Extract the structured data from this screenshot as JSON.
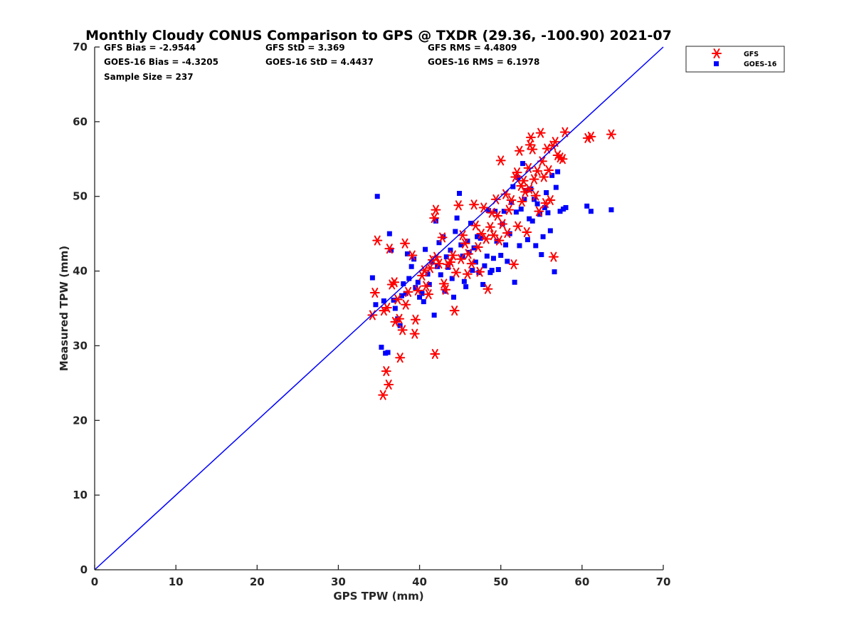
{
  "chart_data": {
    "type": "scatter",
    "title": "Monthly Cloudy CONUS Comparison to GPS @ TXDR (29.36, -100.90) 2021-07",
    "xlabel": "GPS TPW (mm)",
    "ylabel": "Measured TPW (mm)",
    "xlim": [
      0,
      70
    ],
    "ylim": [
      0,
      70
    ],
    "xticks": [
      "0",
      "10",
      "20",
      "30",
      "40",
      "50",
      "60",
      "70"
    ],
    "yticks": [
      "0",
      "10",
      "20",
      "30",
      "40",
      "50",
      "60",
      "70"
    ],
    "grid": false,
    "legend_position": "top-right",
    "reference_line": {
      "x": [
        0,
        70
      ],
      "y": [
        0,
        70
      ],
      "color": "#0000ff"
    },
    "stats": {
      "gfs_bias": "GFS Bias = -2.9544",
      "goes_bias": "GOES-16 Bias = -4.3205",
      "sample_size": "Sample Size = 237",
      "gfs_std": "GFS StD = 3.369",
      "goes_std": "GOES-16 StD = 4.4437",
      "gfs_rms": "GFS RMS = 4.4809",
      "goes_rms": "GOES-16 RMS = 6.1978"
    },
    "series": [
      {
        "name": "GFS",
        "marker": "asterisk",
        "color": "#ff0000",
        "points": [
          [
            34.2,
            34.1
          ],
          [
            34.5,
            37.1
          ],
          [
            34.8,
            44.1
          ],
          [
            35.5,
            23.4
          ],
          [
            35.6,
            34.7
          ],
          [
            35.9,
            26.6
          ],
          [
            36.0,
            35.1
          ],
          [
            36.2,
            24.8
          ],
          [
            36.3,
            43.0
          ],
          [
            36.6,
            38.2
          ],
          [
            36.9,
            38.5
          ],
          [
            37.0,
            33.2
          ],
          [
            37.3,
            36.2
          ],
          [
            37.5,
            33.6
          ],
          [
            37.6,
            28.4
          ],
          [
            37.9,
            32.1
          ],
          [
            38.2,
            43.7
          ],
          [
            38.3,
            35.5
          ],
          [
            38.6,
            37.2
          ],
          [
            39.1,
            42.1
          ],
          [
            39.4,
            31.6
          ],
          [
            39.5,
            33.5
          ],
          [
            39.8,
            37.4
          ],
          [
            40.3,
            39.4
          ],
          [
            40.6,
            40.1
          ],
          [
            40.8,
            38.0
          ],
          [
            41.1,
            36.9
          ],
          [
            41.3,
            40.4
          ],
          [
            41.6,
            41.5
          ],
          [
            41.8,
            47.1
          ],
          [
            41.9,
            28.9
          ],
          [
            42.0,
            48.2
          ],
          [
            42.1,
            41.9
          ],
          [
            42.4,
            41.0
          ],
          [
            42.8,
            44.5
          ],
          [
            43.0,
            38.3
          ],
          [
            43.2,
            37.5
          ],
          [
            43.5,
            40.9
          ],
          [
            43.8,
            41.2
          ],
          [
            44.1,
            42.1
          ],
          [
            44.3,
            34.7
          ],
          [
            44.5,
            39.8
          ],
          [
            44.8,
            48.8
          ],
          [
            45.1,
            41.6
          ],
          [
            45.3,
            44.8
          ],
          [
            45.6,
            43.7
          ],
          [
            45.9,
            39.6
          ],
          [
            46.0,
            42.3
          ],
          [
            46.4,
            41.0
          ],
          [
            46.7,
            48.9
          ],
          [
            46.9,
            46.1
          ],
          [
            47.2,
            43.2
          ],
          [
            47.4,
            39.9
          ],
          [
            47.6,
            45.0
          ],
          [
            47.9,
            48.5
          ],
          [
            48.2,
            44.3
          ],
          [
            48.4,
            37.6
          ],
          [
            48.7,
            45.9
          ],
          [
            48.9,
            47.8
          ],
          [
            49.1,
            44.8
          ],
          [
            49.4,
            49.6
          ],
          [
            49.6,
            47.4
          ],
          [
            49.8,
            44.1
          ],
          [
            50.0,
            54.8
          ],
          [
            50.2,
            46.3
          ],
          [
            50.6,
            50.3
          ],
          [
            50.8,
            45.1
          ],
          [
            51.0,
            48.2
          ],
          [
            51.3,
            49.5
          ],
          [
            51.6,
            40.9
          ],
          [
            51.8,
            52.6
          ],
          [
            52.0,
            53.2
          ],
          [
            52.1,
            46.0
          ],
          [
            52.3,
            56.1
          ],
          [
            52.5,
            51.4
          ],
          [
            52.6,
            49.3
          ],
          [
            52.8,
            52.1
          ],
          [
            53.0,
            50.6
          ],
          [
            53.2,
            45.2
          ],
          [
            53.4,
            53.8
          ],
          [
            53.5,
            51.0
          ],
          [
            53.6,
            56.9
          ],
          [
            53.7,
            57.9
          ],
          [
            53.9,
            56.3
          ],
          [
            54.1,
            52.3
          ],
          [
            54.3,
            50.1
          ],
          [
            54.5,
            53.4
          ],
          [
            54.7,
            48.0
          ],
          [
            54.9,
            58.5
          ],
          [
            55.1,
            54.7
          ],
          [
            55.3,
            52.6
          ],
          [
            55.5,
            49.1
          ],
          [
            55.7,
            56.4
          ],
          [
            55.9,
            53.5
          ],
          [
            56.1,
            49.5
          ],
          [
            56.4,
            56.8
          ],
          [
            56.5,
            41.9
          ],
          [
            56.7,
            57.3
          ],
          [
            57.0,
            55.5
          ],
          [
            57.3,
            55.2
          ],
          [
            57.6,
            55.0
          ],
          [
            57.9,
            58.6
          ],
          [
            60.7,
            57.8
          ],
          [
            61.1,
            58.0
          ],
          [
            63.6,
            58.3
          ]
        ]
      },
      {
        "name": "GOES-16",
        "marker": "square",
        "color": "#0000ff",
        "points": [
          [
            34.2,
            39.1
          ],
          [
            34.6,
            35.5
          ],
          [
            34.8,
            50.0
          ],
          [
            35.3,
            29.8
          ],
          [
            35.6,
            36.0
          ],
          [
            35.8,
            29.0
          ],
          [
            36.1,
            29.1
          ],
          [
            36.3,
            45.0
          ],
          [
            36.5,
            42.8
          ],
          [
            36.8,
            36.1
          ],
          [
            37.0,
            35.0
          ],
          [
            37.3,
            33.6
          ],
          [
            37.6,
            32.7
          ],
          [
            37.8,
            36.7
          ],
          [
            38.0,
            38.3
          ],
          [
            38.3,
            37.0
          ],
          [
            38.5,
            42.3
          ],
          [
            38.7,
            39.0
          ],
          [
            39.0,
            40.6
          ],
          [
            39.3,
            41.6
          ],
          [
            39.5,
            37.8
          ],
          [
            39.8,
            38.5
          ],
          [
            40.0,
            36.5
          ],
          [
            40.3,
            37.0
          ],
          [
            40.5,
            35.9
          ],
          [
            40.7,
            42.9
          ],
          [
            41.0,
            39.6
          ],
          [
            41.2,
            38.2
          ],
          [
            41.5,
            41.2
          ],
          [
            41.8,
            34.1
          ],
          [
            42.0,
            46.7
          ],
          [
            42.2,
            40.6
          ],
          [
            42.4,
            43.8
          ],
          [
            42.6,
            39.5
          ],
          [
            42.9,
            44.6
          ],
          [
            43.1,
            37.3
          ],
          [
            43.3,
            41.9
          ],
          [
            43.5,
            40.5
          ],
          [
            43.8,
            42.8
          ],
          [
            44.0,
            39.0
          ],
          [
            44.2,
            36.5
          ],
          [
            44.4,
            45.3
          ],
          [
            44.6,
            47.1
          ],
          [
            44.9,
            50.4
          ],
          [
            45.1,
            43.5
          ],
          [
            45.3,
            42.0
          ],
          [
            45.5,
            38.6
          ],
          [
            45.7,
            37.9
          ],
          [
            45.9,
            44.0
          ],
          [
            46.1,
            42.5
          ],
          [
            46.3,
            46.4
          ],
          [
            46.5,
            40.1
          ],
          [
            46.7,
            43.1
          ],
          [
            46.9,
            41.2
          ],
          [
            47.1,
            44.6
          ],
          [
            47.3,
            39.8
          ],
          [
            47.5,
            44.4
          ],
          [
            47.8,
            38.2
          ],
          [
            48.0,
            40.7
          ],
          [
            48.3,
            42.0
          ],
          [
            48.5,
            48.1
          ],
          [
            48.7,
            39.8
          ],
          [
            48.9,
            40.1
          ],
          [
            49.1,
            41.7
          ],
          [
            49.3,
            48.0
          ],
          [
            49.5,
            44.0
          ],
          [
            49.7,
            40.2
          ],
          [
            50.0,
            42.1
          ],
          [
            50.2,
            46.3
          ],
          [
            50.4,
            48.0
          ],
          [
            50.6,
            43.5
          ],
          [
            50.8,
            41.3
          ],
          [
            51.1,
            45.0
          ],
          [
            51.3,
            49.2
          ],
          [
            51.5,
            51.3
          ],
          [
            51.7,
            38.5
          ],
          [
            51.9,
            47.9
          ],
          [
            52.1,
            52.5
          ],
          [
            52.3,
            43.4
          ],
          [
            52.5,
            48.3
          ],
          [
            52.7,
            54.4
          ],
          [
            52.9,
            49.6
          ],
          [
            53.1,
            50.8
          ],
          [
            53.3,
            44.2
          ],
          [
            53.5,
            47.0
          ],
          [
            53.7,
            51.0
          ],
          [
            53.9,
            46.7
          ],
          [
            54.1,
            49.6
          ],
          [
            54.3,
            43.4
          ],
          [
            54.5,
            49.0
          ],
          [
            54.8,
            47.6
          ],
          [
            55.0,
            42.2
          ],
          [
            55.2,
            44.6
          ],
          [
            55.4,
            48.5
          ],
          [
            55.6,
            50.5
          ],
          [
            55.8,
            47.8
          ],
          [
            56.1,
            45.4
          ],
          [
            56.3,
            52.8
          ],
          [
            56.6,
            39.9
          ],
          [
            56.8,
            51.2
          ],
          [
            57.0,
            53.3
          ],
          [
            57.3,
            48.0
          ],
          [
            57.7,
            48.3
          ],
          [
            58.0,
            48.5
          ],
          [
            60.6,
            48.7
          ],
          [
            61.1,
            48.0
          ],
          [
            63.6,
            48.2
          ]
        ]
      }
    ]
  }
}
